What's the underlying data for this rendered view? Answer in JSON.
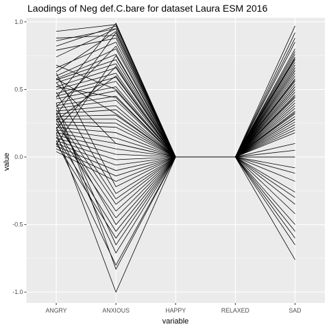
{
  "chart_data": {
    "type": "line",
    "title": "Laodings of Neg def.C.bare for dataset Laura ESM 2016",
    "xlabel": "variable",
    "ylabel": "value",
    "categories": [
      "ANGRY",
      "ANXIOUS",
      "HAPPY",
      "RELAXED",
      "SAD"
    ],
    "ylim": [
      -1.08,
      1.03
    ],
    "yticks": [
      "1.0",
      "0.5",
      "0.0",
      "-0.5",
      "-1.0"
    ],
    "ytick_values": [
      1.0,
      0.5,
      0.0,
      -0.5,
      -1.0
    ],
    "grid": true,
    "legend": "none",
    "colors": {
      "panel": "#ebebeb",
      "grid": "#ffffff",
      "line": "#000000"
    },
    "series": [
      {
        "values": [
          0.93,
          0.98,
          0.0,
          0.0,
          0.97
        ]
      },
      {
        "values": [
          0.86,
          0.95,
          0.0,
          0.0,
          0.92
        ]
      },
      {
        "values": [
          0.88,
          0.9,
          0.0,
          0.0,
          0.85
        ]
      },
      {
        "values": [
          0.82,
          0.97,
          0.0,
          0.0,
          0.78
        ]
      },
      {
        "values": [
          0.79,
          0.88,
          0.0,
          0.0,
          0.76
        ]
      },
      {
        "values": [
          0.66,
          0.85,
          0.0,
          0.0,
          0.74
        ]
      },
      {
        "values": [
          0.63,
          0.93,
          0.0,
          0.0,
          0.72
        ]
      },
      {
        "values": [
          0.6,
          0.8,
          0.0,
          0.0,
          0.7
        ]
      },
      {
        "values": [
          0.58,
          0.76,
          0.0,
          0.0,
          0.68
        ]
      },
      {
        "values": [
          0.57,
          0.72,
          0.0,
          0.0,
          0.66
        ]
      },
      {
        "values": [
          0.55,
          0.69,
          0.0,
          0.0,
          0.64
        ]
      },
      {
        "values": [
          0.52,
          0.66,
          0.0,
          0.0,
          0.62
        ]
      },
      {
        "values": [
          0.5,
          0.62,
          0.0,
          0.0,
          0.6
        ]
      },
      {
        "values": [
          0.47,
          0.59,
          0.0,
          0.0,
          0.58
        ]
      },
      {
        "values": [
          0.45,
          0.56,
          0.0,
          0.0,
          0.56
        ]
      },
      {
        "values": [
          0.43,
          0.52,
          0.0,
          0.0,
          0.54
        ]
      },
      {
        "values": [
          0.4,
          0.49,
          0.0,
          0.0,
          0.52
        ]
      },
      {
        "values": [
          0.38,
          0.45,
          0.0,
          0.0,
          0.5
        ]
      },
      {
        "values": [
          0.36,
          0.42,
          0.0,
          0.0,
          0.48
        ]
      },
      {
        "values": [
          0.34,
          0.38,
          0.0,
          0.0,
          0.46
        ]
      },
      {
        "values": [
          0.32,
          0.35,
          0.0,
          0.0,
          0.44
        ]
      },
      {
        "values": [
          0.3,
          0.31,
          0.0,
          0.0,
          0.42
        ]
      },
      {
        "values": [
          0.28,
          0.28,
          0.0,
          0.0,
          0.4
        ]
      },
      {
        "values": [
          0.26,
          0.25,
          0.0,
          0.0,
          0.38
        ]
      },
      {
        "values": [
          0.24,
          0.22,
          0.0,
          0.0,
          0.36
        ]
      },
      {
        "values": [
          0.22,
          0.18,
          0.0,
          0.0,
          0.34
        ]
      },
      {
        "values": [
          0.2,
          0.14,
          0.0,
          0.0,
          0.32
        ]
      },
      {
        "values": [
          0.18,
          0.1,
          0.0,
          0.0,
          0.3
        ]
      },
      {
        "values": [
          0.16,
          0.06,
          0.0,
          0.0,
          0.28
        ]
      },
      {
        "values": [
          0.14,
          0.02,
          0.0,
          0.0,
          0.26
        ]
      },
      {
        "values": [
          0.12,
          -0.02,
          0.0,
          0.0,
          0.24
        ]
      },
      {
        "values": [
          0.1,
          -0.06,
          0.0,
          0.0,
          0.22
        ]
      },
      {
        "values": [
          0.08,
          -0.1,
          0.0,
          0.0,
          0.2
        ]
      },
      {
        "values": [
          0.06,
          -0.14,
          0.0,
          0.0,
          0.18
        ]
      },
      {
        "values": [
          0.04,
          -0.18,
          0.0,
          0.0,
          0.1
        ]
      },
      {
        "values": [
          0.62,
          -0.22,
          0.0,
          0.0,
          0.05
        ]
      },
      {
        "values": [
          0.48,
          -0.27,
          0.0,
          0.0,
          0.0
        ]
      },
      {
        "values": [
          0.35,
          -0.31,
          0.0,
          0.0,
          -0.08
        ]
      },
      {
        "values": [
          0.3,
          -0.35,
          0.0,
          0.0,
          -0.12
        ]
      },
      {
        "values": [
          0.25,
          -0.4,
          0.0,
          0.0,
          -0.18
        ]
      },
      {
        "values": [
          0.2,
          -0.45,
          0.0,
          0.0,
          -0.26
        ]
      },
      {
        "values": [
          0.28,
          -0.5,
          0.0,
          0.0,
          -0.3
        ]
      },
      {
        "values": [
          0.15,
          -0.55,
          0.0,
          0.0,
          -0.35
        ]
      },
      {
        "values": [
          0.1,
          -0.6,
          0.0,
          0.0,
          -0.42
        ]
      },
      {
        "values": [
          0.33,
          -0.65,
          0.0,
          0.0,
          -0.5
        ]
      },
      {
        "values": [
          0.22,
          -0.71,
          0.0,
          0.0,
          -0.55
        ]
      },
      {
        "values": [
          0.12,
          -0.8,
          0.0,
          0.0,
          -0.65
        ]
      },
      {
        "values": [
          0.4,
          -0.83,
          0.0,
          0.0,
          -0.76
        ]
      },
      {
        "values": [
          0.18,
          -1.0,
          0.0,
          0.0,
          -0.6
        ]
      },
      {
        "values": [
          0.68,
          0.5,
          0.0,
          0.0,
          0.8
        ]
      },
      {
        "values": [
          0.74,
          0.95,
          0.0,
          0.0,
          0.57
        ]
      },
      {
        "values": [
          0.44,
          0.99,
          0.0,
          0.0,
          0.88
        ]
      },
      {
        "values": [
          0.58,
          0.32,
          0.0,
          0.0,
          0.52
        ]
      },
      {
        "values": [
          0.27,
          0.6,
          0.0,
          0.0,
          0.64
        ]
      },
      {
        "values": [
          0.37,
          0.82,
          0.0,
          0.0,
          0.45
        ]
      },
      {
        "values": [
          0.52,
          0.44,
          0.0,
          0.0,
          0.28
        ]
      },
      {
        "values": [
          0.31,
          0.92,
          0.0,
          0.0,
          0.73
        ]
      },
      {
        "values": [
          0.09,
          0.75,
          0.0,
          0.0,
          0.5
        ]
      },
      {
        "values": [
          0.55,
          0.1,
          0.0,
          0.0,
          0.66
        ]
      },
      {
        "values": [
          0.21,
          0.67,
          0.0,
          0.0,
          0.33
        ]
      }
    ]
  }
}
